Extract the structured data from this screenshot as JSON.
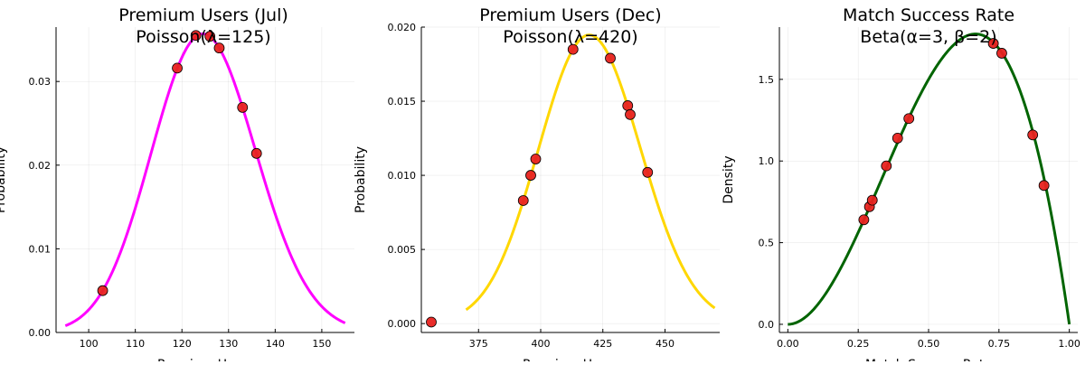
{
  "chart_data": [
    {
      "type": "line",
      "title": "Premium Users (Jul)",
      "subtitle": "Poisson(λ=125)",
      "xlabel": "Premium Users",
      "ylabel": "Probability",
      "xlim": [
        93,
        157
      ],
      "ylim": [
        0,
        0.0365
      ],
      "xticks": [
        100,
        110,
        120,
        130,
        140,
        150
      ],
      "xtick_labels": [
        "100",
        "110",
        "120",
        "130",
        "140",
        "150"
      ],
      "yticks": [
        0,
        0.01,
        0.02,
        0.03
      ],
      "ytick_labels": [
        "0.00",
        "0.01",
        "0.02",
        "0.03"
      ],
      "grid": true,
      "curve": {
        "distribution": "poisson",
        "lambda": 125,
        "x_range": [
          95,
          155
        ],
        "color": "#ff00ff"
      },
      "points": [
        {
          "x": 103,
          "y": 0.005
        },
        {
          "x": 119,
          "y": 0.0316
        },
        {
          "x": 123,
          "y": 0.0355
        },
        {
          "x": 126,
          "y": 0.0354
        },
        {
          "x": 128,
          "y": 0.034
        },
        {
          "x": 133,
          "y": 0.0269
        },
        {
          "x": 136,
          "y": 0.0214
        }
      ],
      "point_color": "#e8221f"
    },
    {
      "type": "line",
      "title": "Premium Users (Dec)",
      "subtitle": "Poisson(λ=420)",
      "xlabel": "Premium Users",
      "ylabel": "Probability",
      "xlim": [
        352,
        472
      ],
      "ylim": [
        -0.0006,
        0.02
      ],
      "xticks": [
        375,
        400,
        425,
        450
      ],
      "xtick_labels": [
        "375",
        "400",
        "425",
        "450"
      ],
      "yticks": [
        0,
        0.005,
        0.01,
        0.015,
        0.02
      ],
      "ytick_labels": [
        "0.000",
        "0.005",
        "0.010",
        "0.015",
        "0.020"
      ],
      "grid": true,
      "curve": {
        "distribution": "poisson",
        "lambda": 420,
        "x_range": [
          370,
          470
        ],
        "color": "#ffd700"
      },
      "points": [
        {
          "x": 356,
          "y": 0.0001
        },
        {
          "x": 393,
          "y": 0.0083
        },
        {
          "x": 396,
          "y": 0.01
        },
        {
          "x": 398,
          "y": 0.0111
        },
        {
          "x": 413,
          "y": 0.0185
        },
        {
          "x": 428,
          "y": 0.0179
        },
        {
          "x": 435,
          "y": 0.0147
        },
        {
          "x": 436,
          "y": 0.0141
        },
        {
          "x": 443,
          "y": 0.0102
        }
      ],
      "point_color": "#e8221f"
    },
    {
      "type": "line",
      "title": "Match Success Rate",
      "subtitle": "Beta(α=3, β=2)",
      "xlabel": "Match Success Rate",
      "ylabel": "Density",
      "xlim": [
        -0.03,
        1.03
      ],
      "ylim": [
        -0.05,
        1.82
      ],
      "xticks": [
        0,
        0.25,
        0.5,
        0.75,
        1.0
      ],
      "xtick_labels": [
        "0.00",
        "0.25",
        "0.50",
        "0.75",
        "1.00"
      ],
      "yticks": [
        0,
        0.5,
        1.0,
        1.5
      ],
      "ytick_labels": [
        "0.0",
        "0.5",
        "1.0",
        "1.5"
      ],
      "grid": true,
      "curve": {
        "distribution": "beta",
        "alpha": 3,
        "beta": 2,
        "x_range": [
          0,
          1
        ],
        "color": "#006400"
      },
      "points": [
        {
          "x": 0.27,
          "y": 0.64
        },
        {
          "x": 0.29,
          "y": 0.72
        },
        {
          "x": 0.3,
          "y": 0.76
        },
        {
          "x": 0.35,
          "y": 0.97
        },
        {
          "x": 0.39,
          "y": 1.14
        },
        {
          "x": 0.43,
          "y": 1.26
        },
        {
          "x": 0.73,
          "y": 1.72
        },
        {
          "x": 0.76,
          "y": 1.66
        },
        {
          "x": 0.87,
          "y": 1.16
        },
        {
          "x": 0.91,
          "y": 0.85
        }
      ],
      "point_color": "#e8221f"
    }
  ]
}
